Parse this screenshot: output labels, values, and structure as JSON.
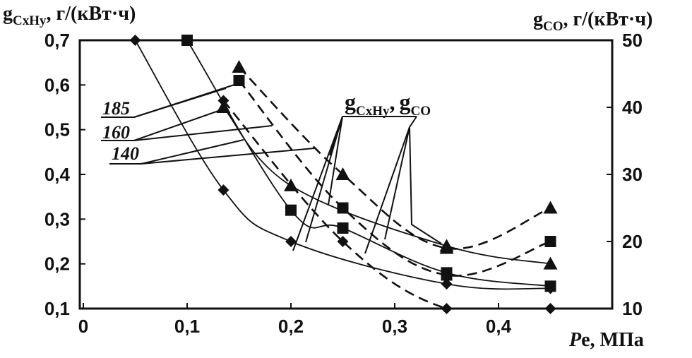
{
  "chart_data": {
    "type": "line",
    "x_axis": {
      "label_italic": "P",
      "label_rest": "e, МПа",
      "range": [
        0,
        0.45
      ],
      "ticks": [
        {
          "value": 0,
          "label": "0"
        },
        {
          "value": 0.1,
          "label": "0,1"
        },
        {
          "value": 0.2,
          "label": "0,2"
        },
        {
          "value": 0.3,
          "label": "0,3"
        },
        {
          "value": 0.4,
          "label": "0,4"
        }
      ]
    },
    "y_left": {
      "label_main": "g",
      "label_sub": "CxHy",
      "label_unit": ", г/(кВт·ч)",
      "range": [
        0.1,
        0.7
      ],
      "ticks": [
        {
          "value": 0.1,
          "label": "0,1"
        },
        {
          "value": 0.2,
          "label": "0,2"
        },
        {
          "value": 0.3,
          "label": "0,3"
        },
        {
          "value": 0.4,
          "label": "0,4"
        },
        {
          "value": 0.5,
          "label": "0,5"
        },
        {
          "value": 0.6,
          "label": "0,6"
        },
        {
          "value": 0.7,
          "label": "0,7"
        }
      ]
    },
    "y_right": {
      "label_main": "g",
      "label_sub": "CO",
      "label_unit": ", г/(кВт·ч)",
      "range": [
        10,
        50
      ],
      "ticks": [
        {
          "value": 10,
          "label": "10"
        },
        {
          "value": 20,
          "label": "20"
        },
        {
          "value": 30,
          "label": "30"
        },
        {
          "value": 40,
          "label": "40"
        },
        {
          "value": 50,
          "label": "50"
        }
      ]
    },
    "curve_labels": [
      "185",
      "160",
      "140"
    ],
    "legend": {
      "solid_main": "g",
      "solid_sub": "CxHy",
      "separator": ",",
      "dashed_main": "g",
      "dashed_sub": "CO"
    },
    "series": [
      {
        "style": "solid",
        "marker": "diamond",
        "axis": "left",
        "x": [
          0.05,
          0.135,
          0.2,
          0.35,
          0.45
        ],
        "y": [
          0.7,
          0.365,
          0.25,
          0.155,
          0.145
        ]
      },
      {
        "style": "solid",
        "marker": "square",
        "axis": "left",
        "x": [
          0.1,
          0.2,
          0.25,
          0.35,
          0.45
        ],
        "y": [
          0.7,
          0.32,
          0.28,
          0.18,
          0.15
        ]
      },
      {
        "style": "solid",
        "marker": "triangle",
        "axis": "left",
        "x": [
          0.135,
          0.2,
          0.35,
          0.45
        ],
        "y": [
          0.55,
          0.375,
          0.24,
          0.2
        ]
      },
      {
        "style": "dashed",
        "marker": "diamond",
        "axis": "right",
        "x": [
          0.135,
          0.25,
          0.35,
          0.45
        ],
        "y": [
          41,
          20,
          10,
          10
        ]
      },
      {
        "style": "dashed",
        "marker": "square",
        "axis": "right",
        "x": [
          0.15,
          0.25,
          0.35,
          0.45
        ],
        "y": [
          44,
          25,
          15,
          20
        ]
      },
      {
        "style": "dashed",
        "marker": "triangle",
        "axis": "right",
        "x": [
          0.15,
          0.25,
          0.35,
          0.45
        ],
        "y": [
          46,
          30,
          19,
          25
        ]
      }
    ]
  }
}
